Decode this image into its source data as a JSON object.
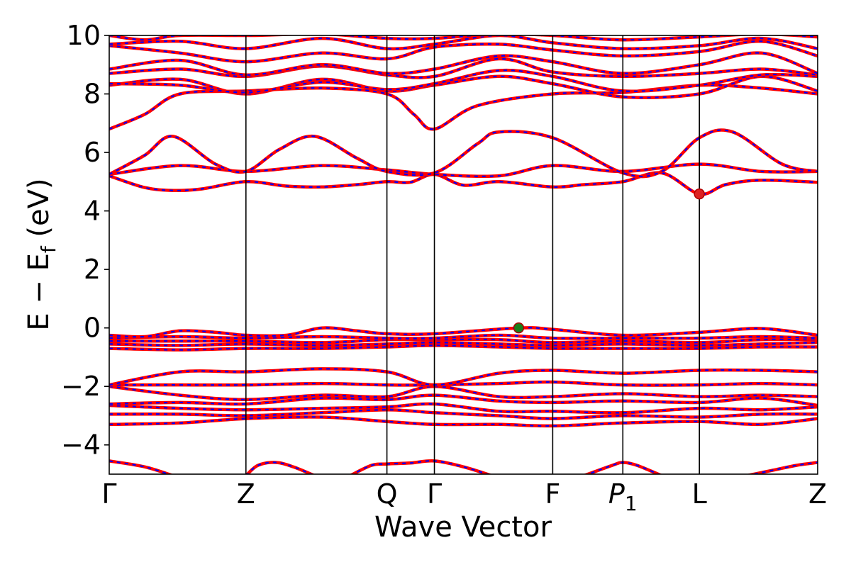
{
  "chart_data": {
    "type": "line",
    "title": "",
    "xlabel": "Wave Vector",
    "ylabel_parts": {
      "main": "E − E",
      "sub": "f",
      "unit": " (eV)"
    },
    "ylim": [
      -5,
      10
    ],
    "xlim": [
      0,
      1
    ],
    "grid": false,
    "yticks": [
      {
        "value": -4,
        "label": "−4"
      },
      {
        "value": -2,
        "label": "−2"
      },
      {
        "value": 0,
        "label": "0"
      },
      {
        "value": 2,
        "label": "2"
      },
      {
        "value": 4,
        "label": "4"
      },
      {
        "value": 6,
        "label": "6"
      },
      {
        "value": 8,
        "label": "8"
      },
      {
        "value": 10,
        "label": "10"
      }
    ],
    "kpoints": [
      {
        "label": "Γ",
        "sub": "",
        "pos": 0.0
      },
      {
        "label": "Z",
        "sub": "",
        "pos": 0.193
      },
      {
        "label": "Q",
        "sub": "",
        "pos": 0.392
      },
      {
        "label": "Γ",
        "sub": "",
        "pos": 0.459
      },
      {
        "label": "F",
        "sub": "",
        "pos": 0.626
      },
      {
        "label": "P",
        "sub": "1",
        "pos": 0.725
      },
      {
        "label": "L",
        "sub": "",
        "pos": 0.833
      },
      {
        "label": "Z",
        "sub": "",
        "pos": 1.0
      }
    ],
    "series_style": {
      "line_color": "#ff0000",
      "dash_color": "#0000ff"
    },
    "markers": [
      {
        "name": "vbm",
        "x": 0.578,
        "y": 0.0,
        "color": "#1a7f1a"
      },
      {
        "name": "cbm",
        "x": 0.833,
        "y": 4.58,
        "color": "#dd2222"
      }
    ],
    "bands": [
      [
        [
          0,
          -4.55
        ],
        [
          0.05,
          -4.75
        ],
        [
          0.09,
          -5.05
        ]
      ],
      [
        [
          0.193,
          -5.05
        ],
        [
          0.21,
          -4.7
        ],
        [
          0.235,
          -4.6
        ],
        [
          0.26,
          -4.75
        ],
        [
          0.29,
          -5.05
        ]
      ],
      [
        [
          0.34,
          -5.05
        ],
        [
          0.37,
          -4.7
        ],
        [
          0.392,
          -4.65
        ],
        [
          0.425,
          -4.62
        ],
        [
          0.459,
          -4.55
        ],
        [
          0.5,
          -4.75
        ],
        [
          0.54,
          -5.05
        ]
      ],
      [
        [
          0.67,
          -5.05
        ],
        [
          0.71,
          -4.7
        ],
        [
          0.725,
          -4.6
        ],
        [
          0.745,
          -4.7
        ],
        [
          0.78,
          -5.05
        ]
      ],
      [
        [
          0.9,
          -5.05
        ],
        [
          0.94,
          -4.85
        ],
        [
          0.97,
          -4.7
        ],
        [
          1,
          -4.6
        ]
      ],
      [
        [
          0,
          -3.3
        ],
        [
          0.1,
          -3.25
        ],
        [
          0.193,
          -3.1
        ],
        [
          0.3,
          -3.05
        ],
        [
          0.392,
          -3.2
        ],
        [
          0.459,
          -3.3
        ],
        [
          0.55,
          -3.3
        ],
        [
          0.626,
          -3.35
        ],
        [
          0.725,
          -3.25
        ],
        [
          0.833,
          -3.2
        ],
        [
          0.92,
          -3.3
        ],
        [
          1,
          -3.1
        ]
      ],
      [
        [
          0,
          -2.95
        ],
        [
          0.1,
          -2.95
        ],
        [
          0.193,
          -3.0
        ],
        [
          0.3,
          -2.9
        ],
        [
          0.392,
          -2.8
        ],
        [
          0.459,
          -2.9
        ],
        [
          0.55,
          -3.0
        ],
        [
          0.626,
          -3.1
        ],
        [
          0.725,
          -3.0
        ],
        [
          0.833,
          -3.05
        ],
        [
          0.92,
          -2.95
        ],
        [
          1,
          -2.95
        ]
      ],
      [
        [
          0,
          -2.65
        ],
        [
          0.1,
          -2.75
        ],
        [
          0.193,
          -2.8
        ],
        [
          0.3,
          -2.75
        ],
        [
          0.392,
          -2.7
        ],
        [
          0.459,
          -2.6
        ],
        [
          0.55,
          -2.85
        ],
        [
          0.626,
          -2.85
        ],
        [
          0.725,
          -2.9
        ],
        [
          0.833,
          -2.75
        ],
        [
          0.92,
          -2.8
        ],
        [
          1,
          -2.7
        ]
      ],
      [
        [
          0,
          -2.6
        ],
        [
          0.1,
          -2.55
        ],
        [
          0.193,
          -2.6
        ],
        [
          0.3,
          -2.4
        ],
        [
          0.392,
          -2.45
        ],
        [
          0.459,
          -2.3
        ],
        [
          0.55,
          -2.5
        ],
        [
          0.626,
          -2.55
        ],
        [
          0.725,
          -2.5
        ],
        [
          0.833,
          -2.55
        ],
        [
          0.92,
          -2.4
        ],
        [
          1,
          -2.65
        ]
      ],
      [
        [
          0,
          -2.0
        ],
        [
          0.1,
          -2.3
        ],
        [
          0.193,
          -2.45
        ],
        [
          0.3,
          -2.3
        ],
        [
          0.392,
          -2.35
        ],
        [
          0.459,
          -2.0
        ],
        [
          0.55,
          -2.35
        ],
        [
          0.626,
          -2.35
        ],
        [
          0.725,
          -2.25
        ],
        [
          0.833,
          -2.35
        ],
        [
          0.92,
          -2.3
        ],
        [
          1,
          -2.35
        ]
      ],
      [
        [
          0,
          -1.95
        ],
        [
          0.1,
          -1.95
        ],
        [
          0.193,
          -1.95
        ],
        [
          0.3,
          -1.9
        ],
        [
          0.392,
          -1.95
        ],
        [
          0.459,
          -1.95
        ],
        [
          0.55,
          -1.9
        ],
        [
          0.626,
          -1.85
        ],
        [
          0.725,
          -1.95
        ],
        [
          0.833,
          -1.95
        ],
        [
          0.92,
          -1.9
        ],
        [
          1,
          -1.95
        ]
      ],
      [
        [
          0,
          -1.95
        ],
        [
          0.1,
          -1.5
        ],
        [
          0.193,
          -1.5
        ],
        [
          0.3,
          -1.4
        ],
        [
          0.392,
          -1.5
        ],
        [
          0.459,
          -1.95
        ],
        [
          0.55,
          -1.55
        ],
        [
          0.626,
          -1.45
        ],
        [
          0.725,
          -1.55
        ],
        [
          0.833,
          -1.45
        ],
        [
          0.92,
          -1.45
        ],
        [
          1,
          -1.5
        ]
      ],
      [
        [
          0,
          -0.7
        ],
        [
          0.1,
          -0.75
        ],
        [
          0.193,
          -0.7
        ],
        [
          0.3,
          -0.7
        ],
        [
          0.392,
          -0.65
        ],
        [
          0.459,
          -0.6
        ],
        [
          0.55,
          -0.65
        ],
        [
          0.626,
          -0.7
        ],
        [
          0.725,
          -0.7
        ],
        [
          0.833,
          -0.7
        ],
        [
          0.92,
          -0.65
        ],
        [
          1,
          -0.65
        ]
      ],
      [
        [
          0,
          -0.55
        ],
        [
          0.1,
          -0.6
        ],
        [
          0.193,
          -0.55
        ],
        [
          0.3,
          -0.6
        ],
        [
          0.392,
          -0.55
        ],
        [
          0.459,
          -0.5
        ],
        [
          0.55,
          -0.55
        ],
        [
          0.626,
          -0.6
        ],
        [
          0.725,
          -0.55
        ],
        [
          0.833,
          -0.6
        ],
        [
          0.92,
          -0.55
        ],
        [
          1,
          -0.5
        ]
      ],
      [
        [
          0,
          -0.45
        ],
        [
          0.1,
          -0.45
        ],
        [
          0.193,
          -0.45
        ],
        [
          0.3,
          -0.5
        ],
        [
          0.392,
          -0.4
        ],
        [
          0.459,
          -0.4
        ],
        [
          0.55,
          -0.4
        ],
        [
          0.626,
          -0.5
        ],
        [
          0.725,
          -0.45
        ],
        [
          0.833,
          -0.5
        ],
        [
          0.92,
          -0.4
        ],
        [
          1,
          -0.4
        ]
      ],
      [
        [
          0,
          -0.35
        ],
        [
          0.1,
          -0.3
        ],
        [
          0.193,
          -0.35
        ],
        [
          0.3,
          -0.3
        ],
        [
          0.392,
          -0.35
        ],
        [
          0.459,
          -0.35
        ],
        [
          0.55,
          -0.25
        ],
        [
          0.626,
          -0.35
        ],
        [
          0.725,
          -0.35
        ],
        [
          0.833,
          -0.35
        ],
        [
          0.92,
          -0.3
        ],
        [
          1,
          -0.35
        ]
      ],
      [
        [
          0,
          -0.25
        ],
        [
          0.05,
          -0.3
        ],
        [
          0.1,
          -0.1
        ],
        [
          0.15,
          -0.15
        ],
        [
          0.193,
          -0.25
        ],
        [
          0.25,
          -0.25
        ],
        [
          0.3,
          0.0
        ],
        [
          0.35,
          -0.1
        ],
        [
          0.392,
          -0.2
        ],
        [
          0.459,
          -0.2
        ],
        [
          0.578,
          0.0
        ],
        [
          0.626,
          -0.05
        ],
        [
          0.725,
          -0.25
        ],
        [
          0.833,
          -0.15
        ],
        [
          0.92,
          -0.02
        ],
        [
          1,
          -0.25
        ]
      ],
      [
        [
          0,
          5.2
        ],
        [
          0.05,
          4.8
        ],
        [
          0.09,
          4.7
        ],
        [
          0.13,
          4.75
        ],
        [
          0.193,
          5.0
        ],
        [
          0.25,
          4.85
        ],
        [
          0.3,
          4.82
        ],
        [
          0.35,
          4.9
        ],
        [
          0.392,
          5.0
        ],
        [
          0.425,
          4.98
        ],
        [
          0.459,
          5.25
        ],
        [
          0.5,
          4.88
        ],
        [
          0.55,
          5.0
        ],
        [
          0.626,
          4.82
        ],
        [
          0.67,
          4.9
        ],
        [
          0.725,
          5.0
        ],
        [
          0.78,
          5.3
        ],
        [
          0.833,
          4.58
        ],
        [
          0.87,
          4.9
        ],
        [
          0.92,
          5.05
        ],
        [
          1,
          4.98
        ]
      ],
      [
        [
          0,
          5.25
        ],
        [
          0.1,
          5.55
        ],
        [
          0.193,
          5.35
        ],
        [
          0.3,
          5.55
        ],
        [
          0.392,
          5.4
        ],
        [
          0.459,
          5.25
        ],
        [
          0.55,
          5.2
        ],
        [
          0.626,
          5.55
        ],
        [
          0.725,
          5.35
        ],
        [
          0.833,
          5.6
        ],
        [
          0.92,
          5.35
        ],
        [
          1,
          5.35
        ]
      ],
      [
        [
          0,
          5.25
        ],
        [
          0.05,
          5.9
        ],
        [
          0.09,
          6.55
        ],
        [
          0.15,
          5.6
        ],
        [
          0.193,
          5.35
        ],
        [
          0.24,
          6.1
        ],
        [
          0.29,
          6.55
        ],
        [
          0.35,
          5.8
        ],
        [
          0.392,
          5.35
        ],
        [
          0.459,
          5.3
        ],
        [
          0.52,
          6.3
        ],
        [
          0.55,
          6.7
        ],
        [
          0.626,
          6.5
        ],
        [
          0.725,
          5.3
        ],
        [
          0.78,
          5.35
        ],
        [
          0.833,
          6.5
        ],
        [
          0.88,
          6.7
        ],
        [
          0.95,
          5.6
        ],
        [
          1,
          5.35
        ]
      ],
      [
        [
          0,
          6.8
        ],
        [
          0.05,
          7.3
        ],
        [
          0.1,
          8.0
        ],
        [
          0.193,
          8.1
        ],
        [
          0.3,
          8.2
        ],
        [
          0.392,
          8.0
        ],
        [
          0.43,
          7.3
        ],
        [
          0.459,
          6.8
        ],
        [
          0.52,
          7.6
        ],
        [
          0.626,
          8.0
        ],
        [
          0.725,
          8.05
        ],
        [
          0.833,
          8.3
        ],
        [
          0.92,
          8.2
        ],
        [
          1,
          8.0
        ]
      ],
      [
        [
          0,
          8.3
        ],
        [
          0.1,
          8.5
        ],
        [
          0.193,
          8.0
        ],
        [
          0.3,
          8.5
        ],
        [
          0.392,
          8.1
        ],
        [
          0.459,
          8.3
        ],
        [
          0.55,
          8.6
        ],
        [
          0.626,
          8.35
        ],
        [
          0.725,
          7.9
        ],
        [
          0.833,
          8.0
        ],
        [
          0.92,
          8.6
        ],
        [
          1,
          8.1
        ]
      ],
      [
        [
          0,
          8.35
        ],
        [
          0.1,
          8.3
        ],
        [
          0.193,
          8.05
        ],
        [
          0.3,
          8.4
        ],
        [
          0.392,
          8.15
        ],
        [
          0.459,
          8.35
        ],
        [
          0.55,
          8.8
        ],
        [
          0.626,
          8.6
        ],
        [
          0.725,
          8.1
        ],
        [
          0.833,
          8.3
        ],
        [
          0.92,
          8.65
        ],
        [
          1,
          8.6
        ]
      ],
      [
        [
          0,
          8.7
        ],
        [
          0.1,
          8.85
        ],
        [
          0.193,
          8.6
        ],
        [
          0.3,
          8.95
        ],
        [
          0.392,
          8.65
        ],
        [
          0.459,
          8.6
        ],
        [
          0.55,
          9.2
        ],
        [
          0.626,
          8.75
        ],
        [
          0.725,
          8.6
        ],
        [
          0.833,
          8.7
        ],
        [
          0.92,
          8.85
        ],
        [
          1,
          8.65
        ]
      ],
      [
        [
          0,
          8.85
        ],
        [
          0.1,
          9.15
        ],
        [
          0.193,
          8.65
        ],
        [
          0.3,
          9.0
        ],
        [
          0.392,
          8.7
        ],
        [
          0.459,
          8.85
        ],
        [
          0.55,
          9.3
        ],
        [
          0.626,
          9.1
        ],
        [
          0.725,
          8.7
        ],
        [
          0.833,
          9.0
        ],
        [
          0.92,
          9.4
        ],
        [
          1,
          8.7
        ]
      ],
      [
        [
          0,
          9.65
        ],
        [
          0.1,
          9.4
        ],
        [
          0.193,
          9.1
        ],
        [
          0.3,
          9.4
        ],
        [
          0.392,
          9.2
        ],
        [
          0.459,
          9.6
        ],
        [
          0.55,
          9.7
        ],
        [
          0.626,
          9.5
        ],
        [
          0.725,
          9.3
        ],
        [
          0.833,
          9.45
        ],
        [
          0.92,
          9.8
        ],
        [
          1,
          9.3
        ]
      ],
      [
        [
          0,
          9.7
        ],
        [
          0.1,
          9.8
        ],
        [
          0.193,
          9.55
        ],
        [
          0.3,
          9.9
        ],
        [
          0.392,
          9.55
        ],
        [
          0.459,
          9.7
        ],
        [
          0.55,
          10.0
        ],
        [
          0.626,
          9.75
        ],
        [
          0.725,
          9.55
        ],
        [
          0.833,
          9.65
        ],
        [
          0.92,
          9.9
        ],
        [
          1,
          9.55
        ]
      ],
      [
        [
          0,
          10.0
        ],
        [
          0.05,
          9.85
        ],
        [
          0.1,
          10.0
        ],
        [
          0.2,
          10.0
        ],
        [
          0.3,
          10.05
        ],
        [
          0.392,
          9.9
        ],
        [
          0.459,
          9.9
        ],
        [
          0.55,
          10.05
        ],
        [
          0.626,
          10.0
        ],
        [
          0.725,
          9.85
        ],
        [
          0.833,
          9.95
        ],
        [
          0.92,
          10.05
        ],
        [
          1,
          9.95
        ]
      ]
    ]
  }
}
